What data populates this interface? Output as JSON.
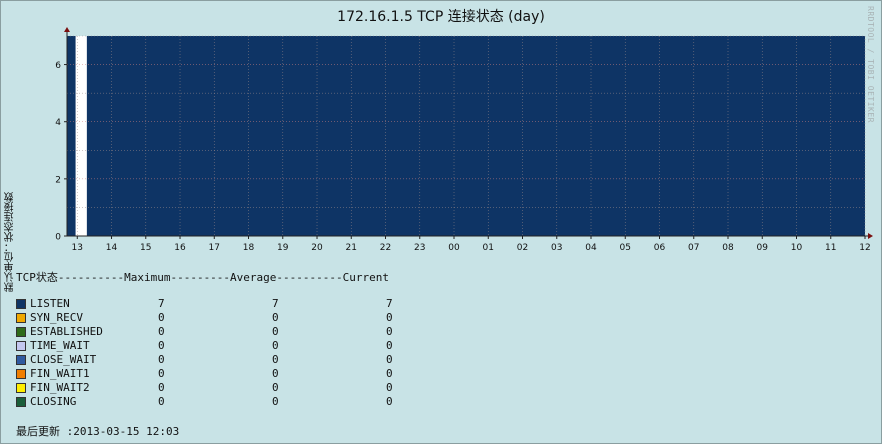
{
  "chart_data": {
    "type": "area",
    "title": "172.16.1.5 TCP 连接状态 (day)",
    "watermark": "RRDTOOL / TOBI OETIKER",
    "ylabel": "默认单位：状态连接数",
    "ylim": [
      0,
      7
    ],
    "y_ticks": [
      "0",
      "2",
      "4",
      "6"
    ],
    "x_ticks": [
      "13",
      "14",
      "15",
      "16",
      "17",
      "18",
      "19",
      "20",
      "21",
      "22",
      "23",
      "00",
      "01",
      "02",
      "03",
      "04",
      "05",
      "06",
      "07",
      "08",
      "09",
      "10",
      "11",
      "12"
    ],
    "grid": true,
    "series": [
      {
        "name": "LISTEN",
        "color": "#0e3465",
        "segments": [
          {
            "from_hour": 12.7,
            "to_hour": 12.95,
            "value": 7
          },
          {
            "from_hour": 13.28,
            "to_hour": 36.0,
            "value": 7
          }
        ]
      }
    ],
    "gap": {
      "from_hour": 12.95,
      "to_hour": 13.28,
      "color": "#ffffff"
    }
  },
  "legend": {
    "header": "TCP状态----------Maximum---------Average----------Current",
    "rows": [
      {
        "name": "LISTEN",
        "color": "#0e3465",
        "max": "7",
        "avg": "7",
        "cur": "7"
      },
      {
        "name": "SYN_RECV",
        "color": "#f0a800",
        "max": "0",
        "avg": "0",
        "cur": "0"
      },
      {
        "name": "ESTABLISHED",
        "color": "#2f6b1a",
        "max": "0",
        "avg": "0",
        "cur": "0"
      },
      {
        "name": "TIME_WAIT",
        "color": "#c4c8f0",
        "max": "0",
        "avg": "0",
        "cur": "0"
      },
      {
        "name": "CLOSE_WAIT",
        "color": "#2f5aa0",
        "max": "0",
        "avg": "0",
        "cur": "0"
      },
      {
        "name": "FIN_WAIT1",
        "color": "#f07e00",
        "max": "0",
        "avg": "0",
        "cur": "0"
      },
      {
        "name": "FIN_WAIT2",
        "color": "#ffee00",
        "max": "0",
        "avg": "0",
        "cur": "0"
      },
      {
        "name": "CLOSING",
        "color": "#1a5e3a",
        "max": "0",
        "avg": "0",
        "cur": "0"
      }
    ]
  },
  "last_update": "最后更新 :2013-03-15 12:03"
}
